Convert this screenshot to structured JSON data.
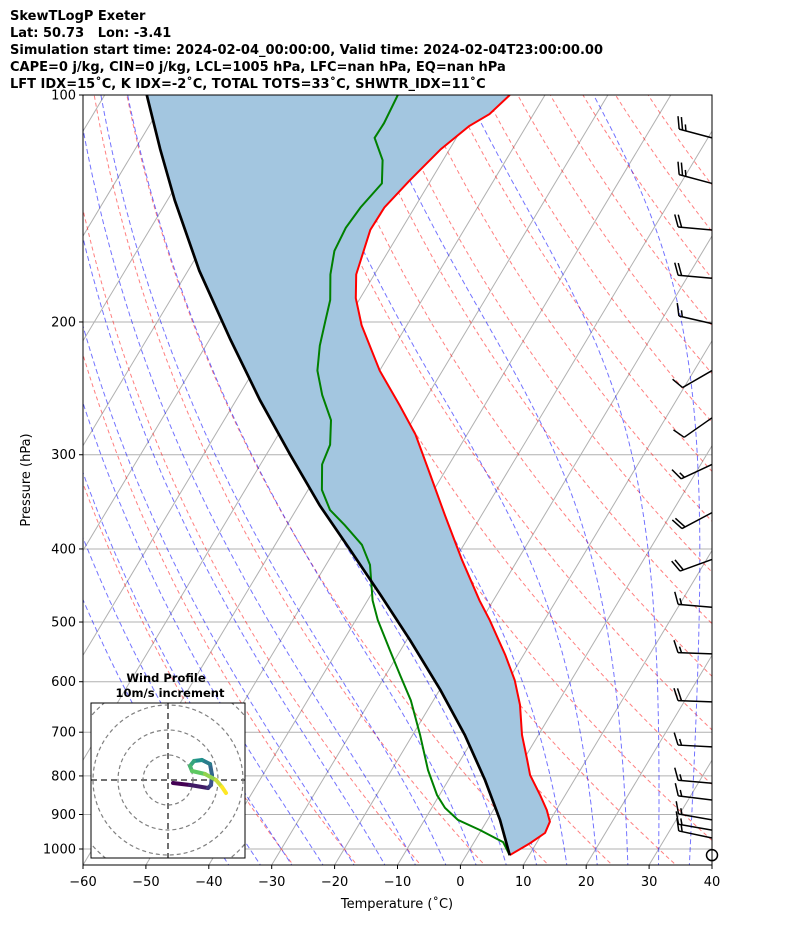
{
  "header": {
    "lines": [
      "SkewTLogP Exeter",
      "Lat: 50.73   Lon: -3.41",
      "Simulation start time: 2024-02-04_00:00:00, Valid time: 2024-02-04T23:00:00.00",
      "CAPE=0 j/kg, CIN=0 j/kg, LCL=1005 hPa, LFC=nan hPa, EQ=nan hPa",
      "LFT IDX=15˚C, K IDX=-2˚C, TOTAL TOTS=33˚C, SHWTR_IDX=11˚C"
    ]
  },
  "chart_data": {
    "type": "skewt",
    "xlabel": "Temperature (˚C)",
    "ylabel": "Pressure (hPa)",
    "xlim": [
      -60,
      40
    ],
    "ylim": [
      1050,
      100
    ],
    "xticks": [
      -60,
      -50,
      -40,
      -30,
      -20,
      -10,
      0,
      10,
      20,
      30,
      40
    ],
    "yticks": [
      100,
      200,
      300,
      400,
      500,
      600,
      700,
      800,
      900,
      1000
    ],
    "grid": true,
    "isotherms_C": [
      -160,
      -150,
      -140,
      -130,
      -120,
      -110,
      -100,
      -90,
      -80,
      -70,
      -60,
      -50,
      -40,
      -30,
      -20,
      -10,
      0,
      10,
      20,
      30,
      40
    ],
    "dry_adiabats_theta_C": [
      -30,
      -20,
      -10,
      0,
      10,
      20,
      30,
      40,
      50,
      60,
      70,
      80,
      90,
      100,
      110,
      120,
      130,
      140,
      150,
      160,
      170
    ],
    "moist_adiabats_T1000_C": [
      -40,
      -35,
      -30,
      -25,
      -20,
      -15,
      -10,
      -5,
      0,
      5,
      10,
      15,
      20,
      25,
      30,
      35
    ],
    "series": [
      {
        "name": "temperature",
        "color": "#ff0000",
        "points": [
          [
            1019,
            6.9
          ],
          [
            982,
            9.0
          ],
          [
            952,
            10.4
          ],
          [
            920,
            10.1
          ],
          [
            888,
            8.5
          ],
          [
            848,
            6.0
          ],
          [
            798,
            2.5
          ],
          [
            762,
            0.6
          ],
          [
            706,
            -2.6
          ],
          [
            644,
            -5.8
          ],
          [
            597,
            -9.0
          ],
          [
            553,
            -12.9
          ],
          [
            497,
            -18.7
          ],
          [
            468,
            -22.2
          ],
          [
            414,
            -28.8
          ],
          [
            361,
            -35.8
          ],
          [
            319,
            -42.0
          ],
          [
            282,
            -48.2
          ],
          [
            258,
            -53.5
          ],
          [
            232,
            -60.0
          ],
          [
            202,
            -67.2
          ],
          [
            186,
            -70.7
          ],
          [
            173,
            -72.9
          ],
          [
            151,
            -74.9
          ],
          [
            141,
            -74.8
          ],
          [
            130,
            -73.4
          ],
          [
            118,
            -71.4
          ],
          [
            110,
            -69.1
          ],
          [
            106,
            -67.0
          ],
          [
            100,
            -65.6
          ]
        ]
      },
      {
        "name": "dewpoint",
        "color": "#008000",
        "points": [
          [
            1019,
            6.9
          ],
          [
            979,
            4.6
          ],
          [
            944,
            -0.2
          ],
          [
            915,
            -4.7
          ],
          [
            882,
            -7.9
          ],
          [
            848,
            -10.4
          ],
          [
            786,
            -14.2
          ],
          [
            706,
            -18.8
          ],
          [
            635,
            -23.6
          ],
          [
            588,
            -27.7
          ],
          [
            545,
            -31.7
          ],
          [
            497,
            -36.5
          ],
          [
            468,
            -39.2
          ],
          [
            420,
            -43.0
          ],
          [
            395,
            -46.2
          ],
          [
            372,
            -50.8
          ],
          [
            355,
            -54.6
          ],
          [
            334,
            -57.8
          ],
          [
            309,
            -60.2
          ],
          [
            291,
            -60.8
          ],
          [
            270,
            -63.0
          ],
          [
            250,
            -66.8
          ],
          [
            232,
            -69.9
          ],
          [
            215,
            -71.9
          ],
          [
            199,
            -73.4
          ],
          [
            187,
            -74.6
          ],
          [
            173,
            -77.0
          ],
          [
            161,
            -78.6
          ],
          [
            150,
            -79.0
          ],
          [
            141,
            -78.6
          ],
          [
            131,
            -77.5
          ],
          [
            122,
            -79.6
          ],
          [
            114,
            -83.0
          ],
          [
            109,
            -82.9
          ],
          [
            100,
            -83.4
          ]
        ]
      },
      {
        "name": "parcel",
        "color": "#000000",
        "points": [
          [
            1019,
            6.9
          ],
          [
            915,
            2.0
          ],
          [
            810,
            -4.2
          ],
          [
            706,
            -11.7
          ],
          [
            615,
            -19.9
          ],
          [
            528,
            -29.5
          ],
          [
            460,
            -38.5
          ],
          [
            401,
            -47.6
          ],
          [
            350,
            -56.7
          ],
          [
            300,
            -66.2
          ],
          [
            254,
            -76.2
          ],
          [
            211,
            -86.7
          ],
          [
            171,
            -98.2
          ],
          [
            138,
            -108.8
          ],
          [
            118,
            -116.0
          ],
          [
            100,
            -123.3
          ]
        ]
      }
    ],
    "shading": {
      "between": [
        "parcel",
        "temperature"
      ],
      "color": "#a3c6e0"
    },
    "wind_barbs": [
      {
        "p": 114,
        "speed_kt": 25,
        "dir_deg": 285
      },
      {
        "p": 131,
        "speed_kt": 25,
        "dir_deg": 285
      },
      {
        "p": 151,
        "speed_kt": 20,
        "dir_deg": 275
      },
      {
        "p": 175,
        "speed_kt": 20,
        "dir_deg": 275
      },
      {
        "p": 201,
        "speed_kt": 15,
        "dir_deg": 283
      },
      {
        "p": 232,
        "speed_kt": 10,
        "dir_deg": 240
      },
      {
        "p": 268,
        "speed_kt": 10,
        "dir_deg": 235
      },
      {
        "p": 309,
        "speed_kt": 15,
        "dir_deg": 245
      },
      {
        "p": 358,
        "speed_kt": 20,
        "dir_deg": 242
      },
      {
        "p": 413,
        "speed_kt": 20,
        "dir_deg": 250
      },
      {
        "p": 478,
        "speed_kt": 15,
        "dir_deg": 275
      },
      {
        "p": 551,
        "speed_kt": 15,
        "dir_deg": 272
      },
      {
        "p": 638,
        "speed_kt": 20,
        "dir_deg": 272
      },
      {
        "p": 732,
        "speed_kt": 15,
        "dir_deg": 273
      },
      {
        "p": 818,
        "speed_kt": 15,
        "dir_deg": 275
      },
      {
        "p": 861,
        "speed_kt": 15,
        "dir_deg": 277
      },
      {
        "p": 915,
        "speed_kt": 15,
        "dir_deg": 280
      },
      {
        "p": 944,
        "speed_kt": 15,
        "dir_deg": 280
      },
      {
        "p": 967,
        "speed_kt": 15,
        "dir_deg": 282
      },
      {
        "p": 1019,
        "speed_kt": 0,
        "dir_deg": 0
      }
    ],
    "hodograph": {
      "title": "Wind Profile",
      "subtitle": "10m/s increment",
      "ring_step_ms": 10,
      "u": [
        2.0,
        8.8,
        16.0,
        17.2,
        17.6,
        16.8,
        13.6,
        10.4,
        8.8,
        9.6,
        14.8,
        19.2,
        21.6,
        23.2
      ],
      "v": [
        -1.2,
        -2.0,
        -3.2,
        -2.0,
        2.0,
        6.4,
        8.0,
        7.6,
        5.6,
        3.6,
        2.4,
        0.0,
        -2.8,
        -5.2
      ]
    }
  }
}
